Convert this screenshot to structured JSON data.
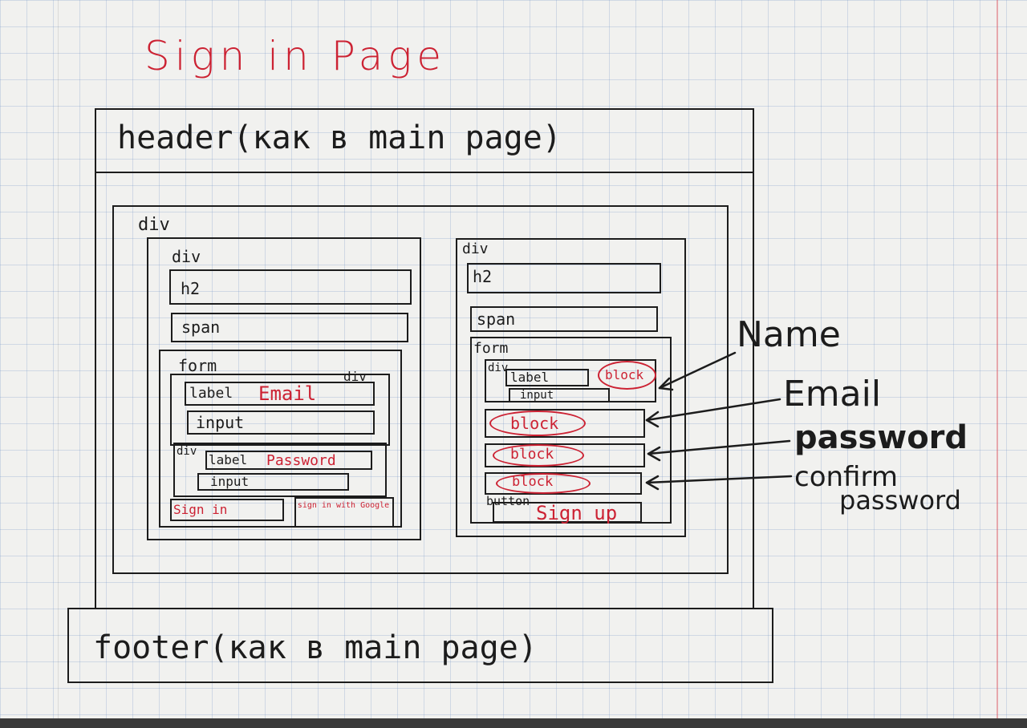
{
  "title": "Sign in Page",
  "header": "header(как в main page)",
  "footer": "footer(как в main page)",
  "outer_div": "div",
  "signin": {
    "div": "div",
    "h2": "h2",
    "span": "span",
    "form": "form",
    "email_div": "div",
    "label": "label",
    "email": "Email",
    "input": "input",
    "password_div": "div",
    "password": "Password",
    "signin_button": "Sign in",
    "google_button": "sign in with Google"
  },
  "signup": {
    "div": "div",
    "h2": "h2",
    "span": "span",
    "form": "form",
    "field_div": "div",
    "label": "label",
    "input": "input",
    "block": "block",
    "button": "button",
    "signup_button": "Sign up"
  },
  "annotations": {
    "name": "Name",
    "email": "Email",
    "password": "password",
    "confirm1": "confirm",
    "confirm2": "password"
  },
  "colors": {
    "ink": "#1c1c1c",
    "red": "#cc2233",
    "grid": "#a9bcd8"
  }
}
